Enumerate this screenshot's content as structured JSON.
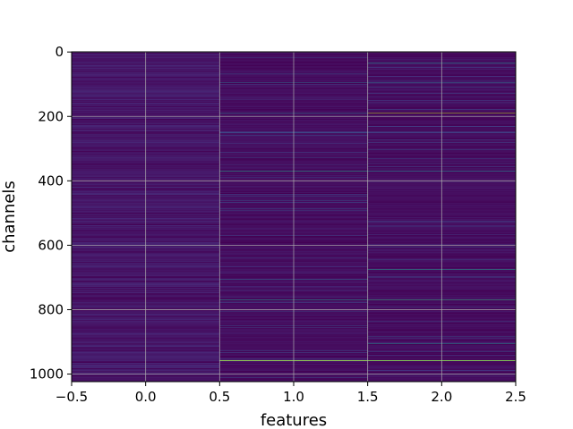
{
  "chart_data": {
    "type": "heatmap",
    "xlabel": "features",
    "ylabel": "channels",
    "xlim": [
      -0.5,
      2.5
    ],
    "ylim": [
      1023.5,
      -0.5
    ],
    "x_ticks": [
      "−0.5",
      "0.0",
      "0.5",
      "1.0",
      "1.5",
      "2.0",
      "2.5"
    ],
    "x_tick_values": [
      -0.5,
      0.0,
      0.5,
      1.0,
      1.5,
      2.0,
      2.5
    ],
    "y_ticks": [
      "0",
      "200",
      "400",
      "600",
      "800",
      "1000"
    ],
    "y_tick_values": [
      0,
      200,
      400,
      600,
      800,
      1000
    ],
    "grid": true,
    "colormap": "viridis",
    "rows": 1024,
    "columns": 3,
    "highlights": [
      {
        "column": 0,
        "channel": 832,
        "level": 0.45
      },
      {
        "column": 1,
        "channel": 95,
        "level": 0.35
      },
      {
        "column": 1,
        "channel": 190,
        "level": 0.4
      },
      {
        "column": 1,
        "channel": 370,
        "level": 1.0
      },
      {
        "column": 1,
        "channel": 485,
        "level": 0.5
      },
      {
        "column": 1,
        "channel": 520,
        "level": 0.35
      },
      {
        "column": 1,
        "channel": 610,
        "level": 0.45
      },
      {
        "column": 1,
        "channel": 705,
        "level": 0.35
      },
      {
        "column": 1,
        "channel": 770,
        "level": 0.55
      },
      {
        "column": 1,
        "channel": 958,
        "level": 1.0
      },
      {
        "column": 2,
        "channel": 35,
        "level": 0.5
      },
      {
        "column": 2,
        "channel": 95,
        "level": 0.4
      },
      {
        "column": 2,
        "channel": 190,
        "level": 0.9
      },
      {
        "column": 2,
        "channel": 370,
        "level": 0.8
      },
      {
        "column": 2,
        "channel": 485,
        "level": 0.45
      },
      {
        "column": 2,
        "channel": 610,
        "level": 0.5
      },
      {
        "column": 2,
        "channel": 660,
        "level": 0.55
      },
      {
        "column": 2,
        "channel": 675,
        "level": 0.55
      },
      {
        "column": 2,
        "channel": 770,
        "level": 0.65
      },
      {
        "column": 2,
        "channel": 905,
        "level": 0.5
      },
      {
        "column": 2,
        "channel": 958,
        "level": 0.95
      }
    ]
  }
}
